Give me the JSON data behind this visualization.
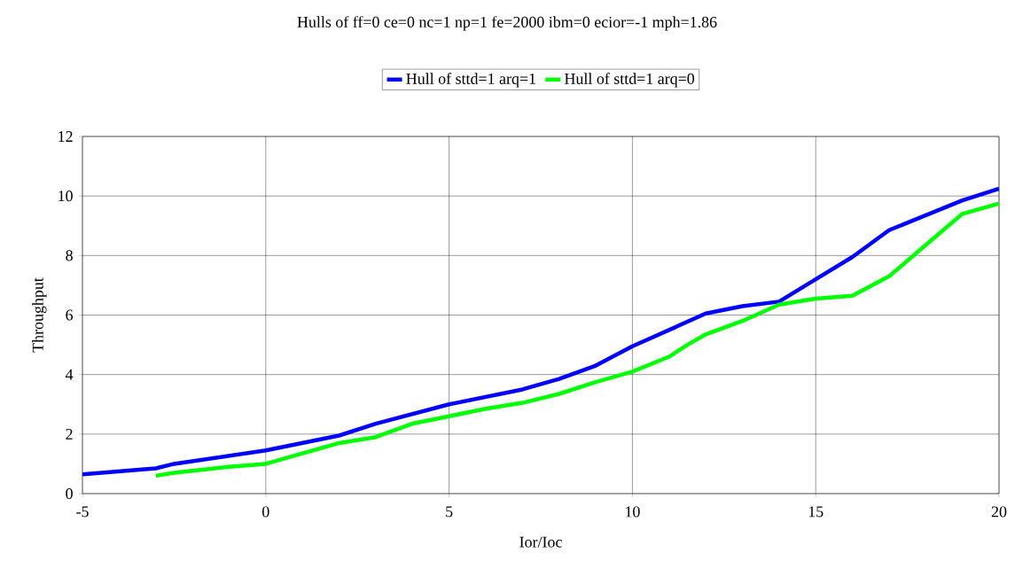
{
  "chart_data": {
    "type": "line",
    "title": "Hulls of ff=0 ce=0 nc=1 np=1 fe=2000 ibm=0 ecior=-1 mph=1.86",
    "xlabel": "Ior/Ioc",
    "ylabel": "Throughput",
    "xlim": [
      -5,
      20
    ],
    "ylim": [
      0,
      12
    ],
    "xticks": [
      -5,
      0,
      5,
      10,
      15,
      20
    ],
    "yticks": [
      0,
      2,
      4,
      6,
      8,
      10,
      12
    ],
    "grid": true,
    "legend": "top",
    "marker": "none",
    "line_style": "solid",
    "series": [
      {
        "name": "Hull of sttd=1 arq=1",
        "color": "#0000ff",
        "x": [
          -5,
          -3,
          -2.5,
          0,
          2,
          3,
          5,
          7,
          8,
          9,
          10,
          11,
          12,
          13,
          14,
          15,
          16,
          17,
          18,
          19,
          20
        ],
        "values": [
          0.65,
          0.85,
          1.0,
          1.45,
          1.95,
          2.35,
          3.0,
          3.5,
          3.85,
          4.3,
          4.95,
          5.5,
          6.05,
          6.3,
          6.45,
          7.2,
          7.95,
          8.85,
          9.35,
          9.85,
          10.25
        ]
      },
      {
        "name": "Hull of sttd=1 arq=0",
        "color": "#00ff00",
        "x": [
          -3,
          -2.5,
          -1,
          0,
          1,
          2,
          3,
          4,
          5,
          6,
          7,
          8,
          9,
          10,
          11,
          11.5,
          12,
          13,
          14,
          15,
          16,
          17,
          18,
          19,
          20
        ],
        "values": [
          0.6,
          0.7,
          0.9,
          1.0,
          1.35,
          1.7,
          1.9,
          2.35,
          2.6,
          2.85,
          3.05,
          3.35,
          3.75,
          4.1,
          4.6,
          5.0,
          5.35,
          5.8,
          6.35,
          6.55,
          6.65,
          7.3,
          8.35,
          9.4,
          9.75
        ]
      }
    ]
  }
}
